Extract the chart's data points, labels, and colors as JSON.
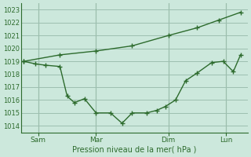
{
  "xlabel": "Pression niveau de la mer( hPa )",
  "bg_color": "#cce8dc",
  "grid_color": "#9dbfb0",
  "line_color": "#2d6b2d",
  "vline_color": "#6b9b6b",
  "ylim": [
    1013.5,
    1023.5
  ],
  "yticks": [
    1014,
    1015,
    1016,
    1017,
    1018,
    1019,
    1020,
    1021,
    1022,
    1023
  ],
  "xtick_labels": [
    "Sam",
    "Mar",
    "Dim",
    "Lun"
  ],
  "xtick_pos": [
    1,
    5,
    10,
    14
  ],
  "vlines_x": [
    1,
    5,
    10,
    14
  ],
  "xlim": [
    -0.2,
    15.5
  ],
  "series1_x": [
    0.0,
    2.5,
    5.0,
    7.5,
    10.0,
    12.0,
    13.5,
    15.0
  ],
  "series1_y": [
    1019.0,
    1019.5,
    1019.8,
    1020.2,
    1021.0,
    1021.6,
    1022.2,
    1022.8
  ],
  "series2_x": [
    0.0,
    0.8,
    1.5,
    2.5,
    3.0,
    3.5,
    4.2,
    5.0,
    6.0,
    6.8,
    7.5,
    8.5,
    9.2,
    9.8,
    10.5,
    11.2,
    12.0,
    13.0,
    13.8,
    14.5,
    15.0
  ],
  "series2_y": [
    1019.0,
    1018.8,
    1018.7,
    1018.6,
    1016.3,
    1015.8,
    1016.1,
    1015.0,
    1015.0,
    1014.2,
    1015.0,
    1015.0,
    1015.2,
    1015.5,
    1016.0,
    1017.5,
    1018.1,
    1018.9,
    1019.0,
    1018.2,
    1019.5
  ]
}
